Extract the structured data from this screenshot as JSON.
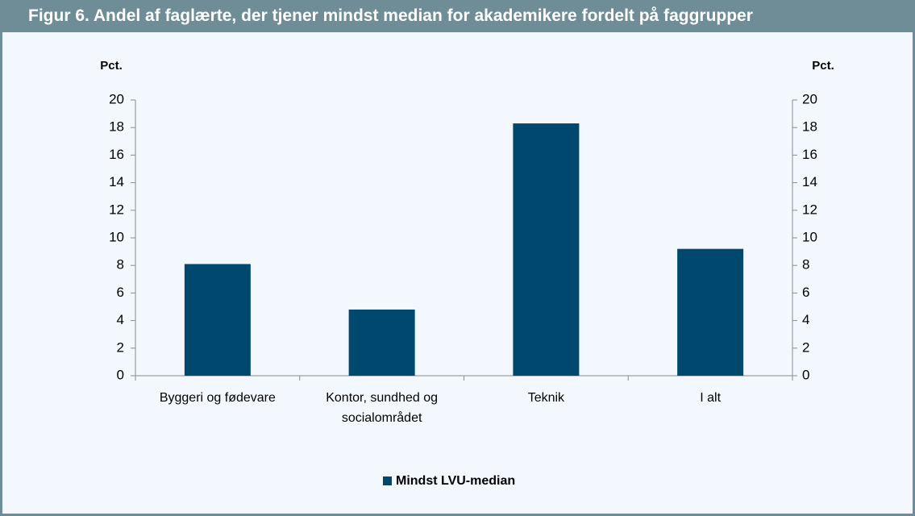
{
  "chart_data": {
    "type": "bar",
    "title": "Figur 6. Andel af faglærte, der tjener mindst median for akademikere fordelt på faggrupper",
    "y_label": "Pct.",
    "y2_label": "Pct.",
    "categories": [
      "Byggeri og fødevare",
      "Kontor, sundhed og socialområdet",
      "Teknik",
      "I alt"
    ],
    "series": [
      {
        "name": "Mindst LVU-median",
        "color": "#00486d",
        "values": [
          8.1,
          4.8,
          18.3,
          9.2
        ]
      }
    ],
    "ylim": [
      0,
      20
    ],
    "yticks": [
      0,
      2,
      4,
      6,
      8,
      10,
      12,
      14,
      16,
      18,
      20
    ],
    "y2lim": [
      0,
      20
    ],
    "y2ticks": [
      0,
      2,
      4,
      6,
      8,
      10,
      12,
      14,
      16,
      18,
      20
    ],
    "legend": "bottom"
  }
}
